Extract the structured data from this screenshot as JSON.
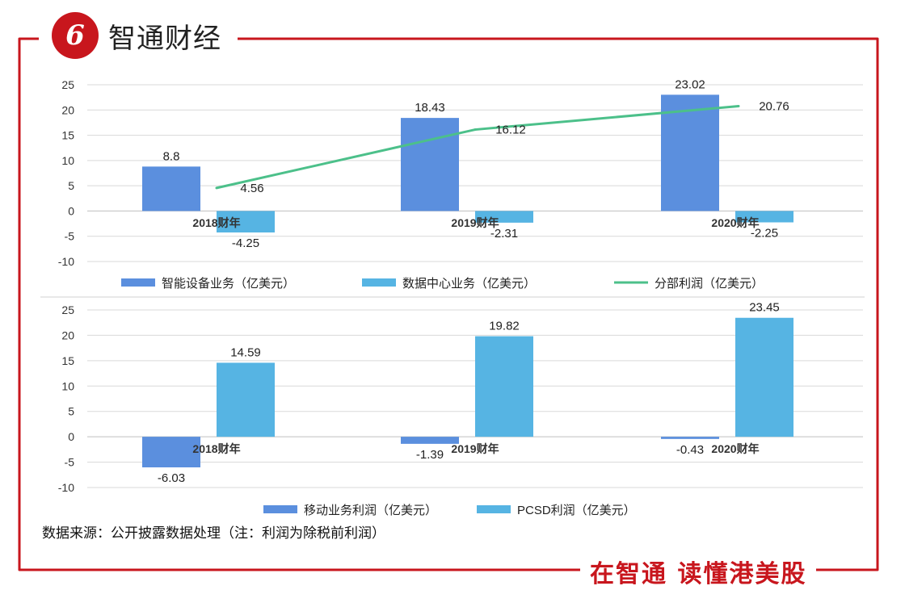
{
  "brand": {
    "logo_mark": "6",
    "name": "智通财经"
  },
  "slogan": "在智通  读懂港美股",
  "source_note": "数据来源：公开披露数据处理（注：利润为除税前利润）",
  "colors": {
    "frame": "#c8161d",
    "bar_blue": "#5b8fde",
    "bar_light": "#56b4e3",
    "line_green": "#4cc08a"
  },
  "chart_data": [
    {
      "type": "bar",
      "categories": [
        "2018财年",
        "2019财年",
        "2020财年"
      ],
      "ylim": [
        -10,
        25
      ],
      "yticks": [
        25,
        20,
        15,
        10,
        5,
        0,
        -5,
        -10
      ],
      "series": [
        {
          "name": "智能设备业务（亿美元）",
          "kind": "bar",
          "color": "#5b8fde",
          "values": [
            8.8,
            18.43,
            23.02
          ],
          "labels": [
            "8.8",
            "18.43",
            "23.02"
          ]
        },
        {
          "name": "数据中心业务（亿美元）",
          "kind": "bar",
          "color": "#56b4e3",
          "values": [
            -4.25,
            -2.31,
            -2.25
          ],
          "labels": [
            "-4.25",
            "-2.31",
            "-2.25"
          ]
        },
        {
          "name": "分部利润（亿美元）",
          "kind": "line",
          "color": "#4cc08a",
          "values": [
            4.56,
            16.12,
            20.76
          ],
          "labels": [
            "4.56",
            "16.12",
            "20.76"
          ]
        }
      ],
      "legend_position": "bottom"
    },
    {
      "type": "bar",
      "categories": [
        "2018财年",
        "2019财年",
        "2020财年"
      ],
      "ylim": [
        -10,
        25
      ],
      "yticks": [
        25,
        20,
        15,
        10,
        5,
        0,
        -5,
        -10
      ],
      "series": [
        {
          "name": "移动业务利润（亿美元）",
          "kind": "bar",
          "color": "#5b8fde",
          "values": [
            -6.03,
            -1.39,
            -0.43
          ],
          "labels": [
            "-6.03",
            "-1.39",
            "-0.43"
          ]
        },
        {
          "name": "PCSD利润（亿美元）",
          "kind": "bar",
          "color": "#56b4e3",
          "values": [
            14.59,
            19.82,
            23.45
          ],
          "labels": [
            "14.59",
            "19.82",
            "23.45"
          ]
        }
      ],
      "legend_position": "bottom"
    }
  ]
}
